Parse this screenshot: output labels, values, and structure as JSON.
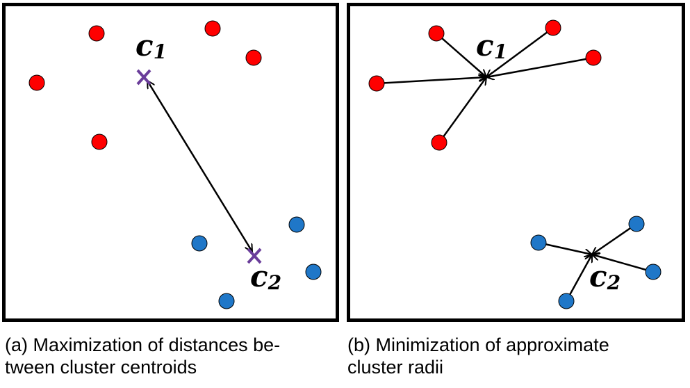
{
  "panel_a": {
    "centroid_1_letter": "c",
    "centroid_1_sub": "1",
    "centroid_2_letter": "c",
    "centroid_2_sub": "2",
    "caption_line1": "(a) Maximization of distances be-",
    "caption_line2": "tween cluster centroids"
  },
  "panel_b": {
    "centroid_1_letter": "c",
    "centroid_1_sub": "1",
    "centroid_2_letter": "c",
    "centroid_2_sub": "2",
    "caption_words": [
      "(b)",
      "Minimization",
      "of",
      "approximate"
    ],
    "caption_line2": "cluster radii"
  },
  "colors": {
    "red_points": "#ff0000",
    "blue_points": "#1f77c8",
    "centroid_marker": "#6a3d9a",
    "lines": "#000000"
  }
}
